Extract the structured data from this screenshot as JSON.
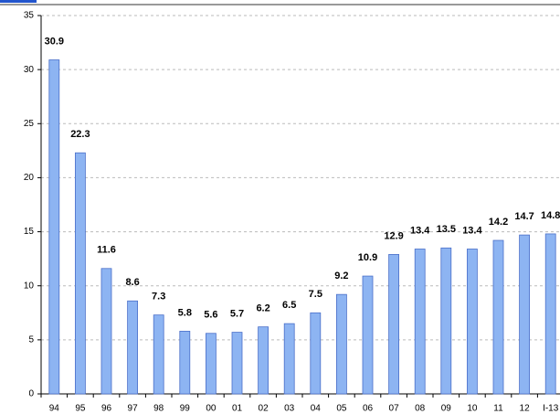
{
  "chart_data": {
    "type": "bar",
    "categories": [
      "94",
      "95",
      "96",
      "97",
      "98",
      "99",
      "00",
      "01",
      "02",
      "03",
      "04",
      "05",
      "06",
      "07",
      "08",
      "09",
      "10",
      "11",
      "12",
      "I-13"
    ],
    "values": [
      30.9,
      22.3,
      11.6,
      8.6,
      7.3,
      5.8,
      5.6,
      5.7,
      6.2,
      6.5,
      7.5,
      9.2,
      10.9,
      12.9,
      13.4,
      13.5,
      13.4,
      14.2,
      14.7,
      14.8
    ],
    "color": "#8db4f2",
    "ylim": [
      0,
      35
    ],
    "yticks": [
      0,
      5,
      10,
      15,
      20,
      25,
      30,
      35
    ],
    "grid": true
  }
}
